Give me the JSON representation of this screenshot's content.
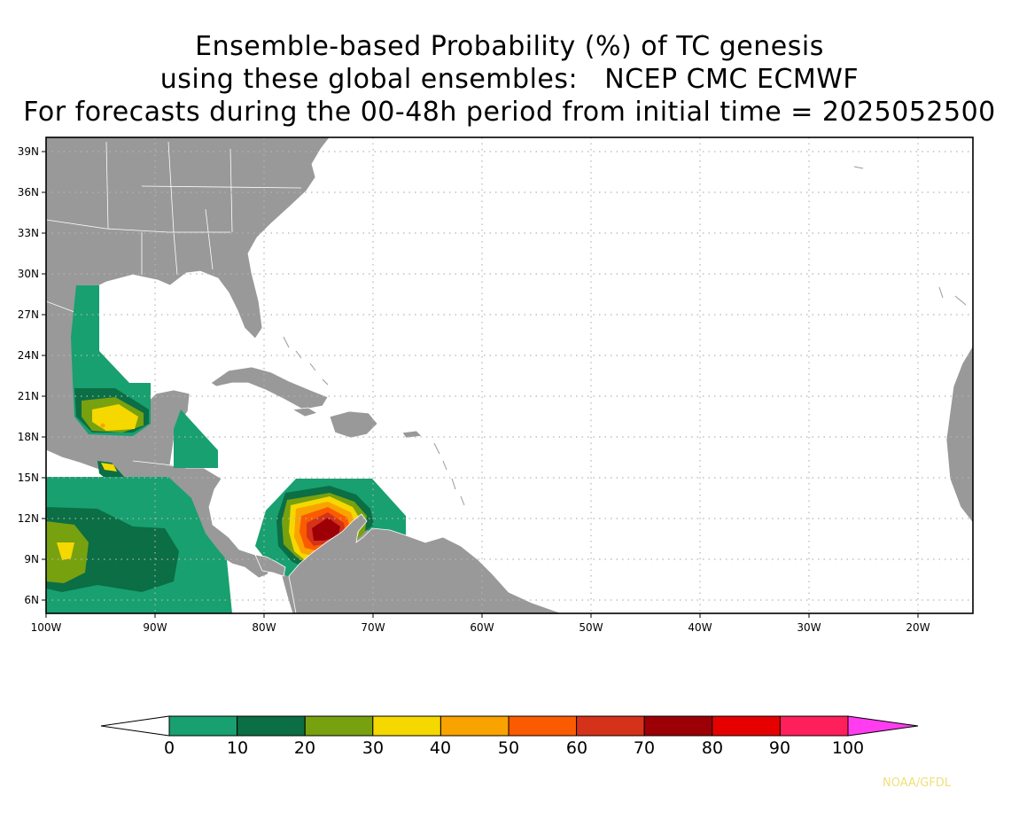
{
  "title": {
    "line1": "Ensemble-based Probability (%) of TC genesis",
    "line2": "using these global ensembles:   NCEP CMC ECMWF",
    "line3": "For forecasts during the 00-48h period from initial time = 2025052500"
  },
  "map": {
    "lat_labels": [
      "39N",
      "36N",
      "33N",
      "30N",
      "27N",
      "24N",
      "21N",
      "18N",
      "15N",
      "12N",
      "9N",
      "6N"
    ],
    "lon_labels": [
      "100W",
      "90W",
      "80W",
      "70W",
      "60W",
      "50W",
      "40W",
      "30W",
      "20W"
    ],
    "land_color": "#999999",
    "ocean_color": "#ffffff"
  },
  "colorbar": {
    "labels": [
      "0",
      "10",
      "20",
      "30",
      "40",
      "50",
      "60",
      "70",
      "80",
      "90",
      "100"
    ],
    "colors": [
      "#18a070",
      "#0b6e45",
      "#78a10f",
      "#f5d800",
      "#f9a300",
      "#fb5b00",
      "#d5321a",
      "#9c0006",
      "#e60000",
      "#ff1f5a",
      "#ff3cf0"
    ]
  },
  "credit": "NOAA/GFDL"
}
